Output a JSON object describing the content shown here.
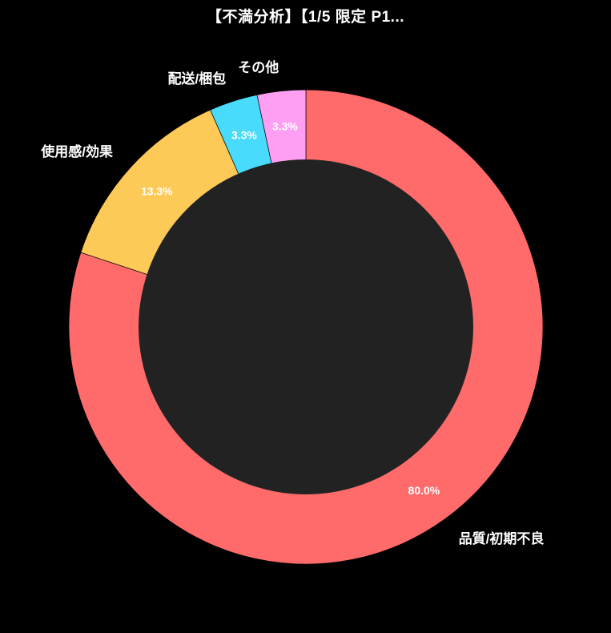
{
  "page": {
    "background_color": "#000000"
  },
  "chart_data": {
    "type": "pie",
    "subtype": "donut",
    "title": "【不満分析】【1/5 限定 P1...",
    "title_color": "#ffffff",
    "categories": [
      "品質/初期不良",
      "使用感/効果",
      "配送/梱包",
      "その他"
    ],
    "category_slugs": [
      "quality-initial-defect",
      "usage-feel-effect",
      "shipping-packaging",
      "other"
    ],
    "values": [
      80.0,
      13.3,
      3.3,
      3.3
    ],
    "percent_labels": [
      "80.0%",
      "13.3%",
      "3.3%",
      "3.3%"
    ],
    "colors": [
      "#ff6b6b",
      "#feca57",
      "#48dbfb",
      "#ff9ff3"
    ],
    "hole_color": "#222222",
    "background_color": "#000000",
    "text_color": "#ffffff",
    "start_angle": "12-oclock",
    "direction": "clockwise",
    "inner_radius_ratio": 0.706,
    "percent_label_distance": 0.85,
    "category_label_distance": 1.1,
    "legend": "none",
    "grid": "off"
  }
}
